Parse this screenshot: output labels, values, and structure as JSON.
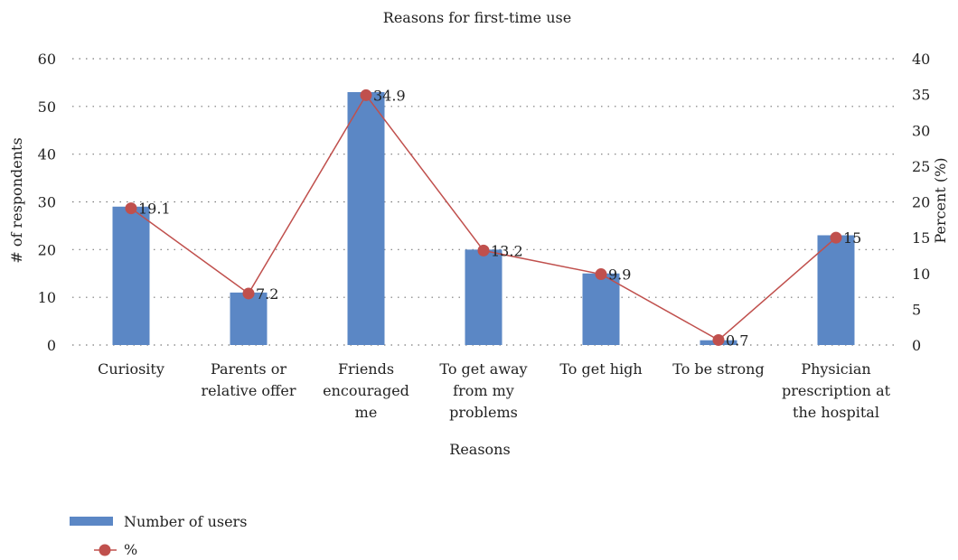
{
  "chart_data": {
    "type": "bar",
    "title": "Reasons for first-time use",
    "xlabel": "Reasons",
    "ylabel": "# of respondents",
    "y2label": "Percent (%)",
    "ylim": [
      0,
      60
    ],
    "y2lim": [
      0,
      40
    ],
    "yticks": [
      "0",
      "10",
      "20",
      "30",
      "40",
      "50",
      "60"
    ],
    "y2ticks": [
      "0",
      "5",
      "10",
      "15",
      "20",
      "25",
      "30",
      "35",
      "40"
    ],
    "grid": true,
    "legend_position": "bottom-left",
    "categories": [
      [
        "Curiosity"
      ],
      [
        "Parents or",
        "relative offer"
      ],
      [
        "Friends",
        "encouraged",
        "me"
      ],
      [
        "To get away",
        "from my",
        "problems"
      ],
      [
        "To get high"
      ],
      [
        "To be strong"
      ],
      [
        "Physician",
        "prescription at",
        "the hospital"
      ]
    ],
    "series": [
      {
        "name": "Number of users",
        "type": "bar",
        "axis": "left",
        "color": "#5b87c5",
        "values": [
          29,
          11,
          53,
          20,
          15,
          1,
          23
        ]
      },
      {
        "name": "%",
        "type": "line",
        "axis": "right",
        "color": "#c0504d",
        "values": [
          19.1,
          7.2,
          34.9,
          13.2,
          9.9,
          0.7,
          15
        ],
        "labels": [
          "19.1",
          "7.2",
          "34.9",
          "13.2",
          "9.9",
          "0.7",
          "15"
        ]
      }
    ]
  }
}
